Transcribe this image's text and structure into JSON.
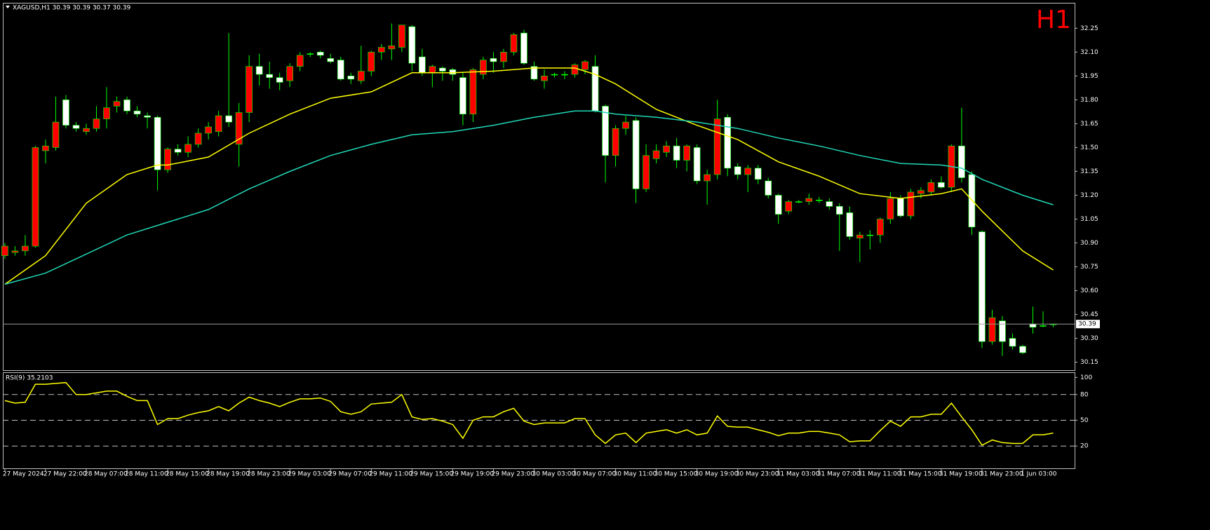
{
  "chart_data": [
    {
      "type": "candlestick",
      "title": "XAGUSD,H1  30.39 30.39 30.37 30.39",
      "annotation": "H1",
      "annotation_color": "#ff0000",
      "up_color": "#ff0000",
      "down_color": "#ffffff",
      "wick_color": "#00ff00",
      "categories": [
        "27 May 2024",
        null,
        null,
        null,
        "27 May 22:00",
        null,
        null,
        null,
        "28 May 07:00",
        null,
        null,
        null,
        "28 May 11:00",
        null,
        null,
        null,
        "28 May 15:00",
        null,
        null,
        null,
        "28 May 19:00",
        null,
        null,
        null,
        "28 May 23:00",
        null,
        null,
        null,
        "29 May 03:00",
        null,
        null,
        null,
        "29 May 07:00",
        null,
        null,
        null,
        "29 May 11:00",
        null,
        null,
        null,
        "29 May 15:00",
        null,
        null,
        null,
        "29 May 19:00",
        null,
        null,
        null,
        "29 May 23:00",
        null,
        null,
        null,
        "30 May 03:00",
        null,
        null,
        null,
        "30 May 07:00",
        null,
        null,
        null,
        "30 May 11:00",
        null,
        null,
        null,
        "30 May 15:00",
        null,
        null,
        null,
        "30 May 19:00",
        null,
        null,
        null,
        "30 May 23:00",
        null,
        null,
        null,
        "31 May 03:00",
        null,
        null,
        null,
        "31 May 07:00",
        null,
        null,
        null,
        "31 May 11:00",
        null,
        null,
        null,
        "31 May 15:00",
        null,
        null,
        null,
        "31 May 19:00",
        null,
        null,
        null,
        "31 May 23:00",
        null,
        null,
        null,
        "1 Jun 03:00",
        null,
        null,
        null
      ],
      "open": [
        30.82,
        30.84,
        30.85,
        30.88,
        31.48,
        31.5,
        31.8,
        31.64,
        31.6,
        31.62,
        31.68,
        31.76,
        31.8,
        31.73,
        31.7,
        31.69,
        31.36,
        31.49,
        31.47,
        31.52,
        31.59,
        31.6,
        31.7,
        31.52,
        31.72,
        32.01,
        31.96,
        31.94,
        31.92,
        32.01,
        32.09,
        32.1,
        32.06,
        32.05,
        31.95,
        31.92,
        31.98,
        32.1,
        32.12,
        32.13,
        32.26,
        32.07,
        31.97,
        32.0,
        31.99,
        31.94,
        31.71,
        31.96,
        32.06,
        32.04,
        32.1,
        32.22,
        32.01,
        31.92,
        31.96,
        31.96,
        31.96,
        31.99,
        32.01,
        31.76,
        31.45,
        31.62,
        31.67,
        31.24,
        31.43,
        31.47,
        31.51,
        31.42,
        31.5,
        31.29,
        31.33,
        31.69,
        31.38,
        31.33,
        31.37,
        31.29,
        31.2,
        31.1,
        31.16,
        31.16,
        31.17,
        31.16,
        31.13,
        31.09,
        30.93,
        30.95,
        30.95,
        31.05,
        31.18,
        31.07,
        31.21,
        31.22,
        31.28,
        31.25,
        31.51,
        31.33,
        30.97,
        30.28,
        30.41,
        30.3,
        30.25,
        30.39,
        30.38,
        30.39
      ],
      "high": [
        30.9,
        30.88,
        30.95,
        31.51,
        31.55,
        31.82,
        31.83,
        31.66,
        31.65,
        31.76,
        31.88,
        31.82,
        31.82,
        31.76,
        31.72,
        31.7,
        31.5,
        31.52,
        31.57,
        31.62,
        31.66,
        31.73,
        32.22,
        31.78,
        32.08,
        32.09,
        32.04,
        31.97,
        32.03,
        32.1,
        32.1,
        32.11,
        32.09,
        32.07,
        31.97,
        32.14,
        32.11,
        32.15,
        32.28,
        32.27,
        32.27,
        32.12,
        32.02,
        32.01,
        32.0,
        31.97,
        32.0,
        32.07,
        32.1,
        32.12,
        32.22,
        32.24,
        32.04,
        31.99,
        31.97,
        31.98,
        32.03,
        32.05,
        32.08,
        31.77,
        31.64,
        31.7,
        31.69,
        31.52,
        31.52,
        31.54,
        31.56,
        31.52,
        31.52,
        31.36,
        31.8,
        31.71,
        31.4,
        31.39,
        31.39,
        31.31,
        31.21,
        31.17,
        31.17,
        31.21,
        31.19,
        31.18,
        31.15,
        31.13,
        30.97,
        30.98,
        31.06,
        31.22,
        31.2,
        31.24,
        31.25,
        31.3,
        31.32,
        31.52,
        31.75,
        31.35,
        30.98,
        30.48,
        30.44,
        30.33,
        30.26,
        30.5,
        30.47,
        30.39
      ],
      "low": [
        30.8,
        30.82,
        30.82,
        30.87,
        31.4,
        31.48,
        31.62,
        31.6,
        31.58,
        31.6,
        31.62,
        31.72,
        31.71,
        31.69,
        31.62,
        31.23,
        31.34,
        31.45,
        31.44,
        31.5,
        31.55,
        31.57,
        31.63,
        31.38,
        31.66,
        31.89,
        31.87,
        31.86,
        31.88,
        31.98,
        32.07,
        32.06,
        32.03,
        31.92,
        31.9,
        31.9,
        31.95,
        32.05,
        32.05,
        32.1,
        31.98,
        31.95,
        31.88,
        31.92,
        31.92,
        31.64,
        31.66,
        31.93,
        31.97,
        32.0,
        32.08,
        32.02,
        31.92,
        31.87,
        31.94,
        31.93,
        31.94,
        31.96,
        31.72,
        31.28,
        31.38,
        31.58,
        31.15,
        31.22,
        31.4,
        31.44,
        31.37,
        31.35,
        31.27,
        31.14,
        31.3,
        31.32,
        31.3,
        31.22,
        31.27,
        31.18,
        31.02,
        31.08,
        31.15,
        31.14,
        31.15,
        31.11,
        30.85,
        30.92,
        30.78,
        30.86,
        30.9,
        31.02,
        31.06,
        31.05,
        31.18,
        31.2,
        31.24,
        31.22,
        31.28,
        30.95,
        30.24,
        30.26,
        30.19,
        30.23,
        30.2,
        30.33,
        30.37,
        30.37
      ],
      "close": [
        30.88,
        30.85,
        30.88,
        31.5,
        31.51,
        31.66,
        31.64,
        31.62,
        31.62,
        31.68,
        31.75,
        31.79,
        31.73,
        31.71,
        31.69,
        31.36,
        31.49,
        31.47,
        31.52,
        31.59,
        31.63,
        31.7,
        31.66,
        31.72,
        32.01,
        31.96,
        31.94,
        31.91,
        32.01,
        32.08,
        32.09,
        32.08,
        32.04,
        31.93,
        31.93,
        31.98,
        32.1,
        32.13,
        32.14,
        32.27,
        32.03,
        31.97,
        32.01,
        31.98,
        31.96,
        31.71,
        31.99,
        32.05,
        32.04,
        32.1,
        32.21,
        32.03,
        31.93,
        31.95,
        31.96,
        31.96,
        32.02,
        32.04,
        31.73,
        31.45,
        31.62,
        31.66,
        31.24,
        31.45,
        31.48,
        31.51,
        31.42,
        31.51,
        31.29,
        31.33,
        31.68,
        31.37,
        31.33,
        31.37,
        31.3,
        31.2,
        31.08,
        31.16,
        31.16,
        31.18,
        31.17,
        31.13,
        31.08,
        30.94,
        30.95,
        30.95,
        31.05,
        31.18,
        31.07,
        31.22,
        31.23,
        31.28,
        31.25,
        31.51,
        31.31,
        31.0,
        30.28,
        30.43,
        30.28,
        30.25,
        30.21,
        30.37,
        30.38,
        30.39
      ],
      "series": [
        {
          "color": "#ffff00",
          "x": [
            0,
            4,
            8,
            12,
            15,
            16,
            20,
            24,
            28,
            32,
            36,
            40,
            44,
            48,
            52,
            56,
            58,
            60,
            64,
            68,
            72,
            76,
            80,
            84,
            88,
            92,
            94,
            96,
            100,
            103
          ],
          "values": [
            30.64,
            30.82,
            31.15,
            31.33,
            31.39,
            31.39,
            31.44,
            31.59,
            31.71,
            31.81,
            31.85,
            31.97,
            31.97,
            31.98,
            32.0,
            32.0,
            31.96,
            31.9,
            31.74,
            31.64,
            31.55,
            31.41,
            31.32,
            31.21,
            31.18,
            31.21,
            31.24,
            31.1,
            30.85,
            30.73
          ]
        },
        {
          "color": "#20d8b8",
          "x": [
            0,
            4,
            8,
            12,
            16,
            20,
            24,
            28,
            32,
            36,
            40,
            44,
            48,
            52,
            56,
            58,
            60,
            64,
            68,
            72,
            76,
            80,
            84,
            88,
            92,
            94,
            96,
            100,
            103
          ],
          "values": [
            30.64,
            30.71,
            30.83,
            30.95,
            31.03,
            31.11,
            31.24,
            31.35,
            31.45,
            31.52,
            31.58,
            31.6,
            31.64,
            31.69,
            31.73,
            31.73,
            31.71,
            31.69,
            31.66,
            31.62,
            31.56,
            31.51,
            31.45,
            31.4,
            31.39,
            31.37,
            31.3,
            31.2,
            31.14
          ]
        }
      ],
      "last_price": 30.39,
      "xlim": [
        -0.2,
        105.1
      ],
      "ylim": [
        30.1,
        32.41
      ],
      "yticks": [
        32.25,
        {
          "value": 32.1,
          "label": "32.10"
        },
        31.95,
        {
          "value": 31.8,
          "label": "31.80"
        },
        31.65,
        {
          "value": 31.5,
          "label": "31.50"
        },
        31.35,
        {
          "value": 31.2,
          "label": "31.20"
        },
        31.05,
        {
          "value": 30.9,
          "label": "30.90"
        },
        30.75,
        {
          "value": 30.6,
          "label": "30.60"
        },
        30.45,
        {
          "value": 30.3,
          "label": "30.30"
        },
        30.15
      ]
    },
    {
      "type": "line",
      "title": "RSI(9) 35.2103",
      "series": [
        {
          "color": "#ffff00",
          "values": [
            73,
            70,
            71,
            92,
            92,
            93,
            94,
            80,
            80,
            82,
            84,
            84,
            78,
            73,
            73,
            45,
            52,
            52,
            56,
            59,
            61,
            66,
            61,
            70,
            77,
            73,
            70,
            66,
            71,
            75,
            75,
            76,
            72,
            60,
            57,
            60,
            69,
            70,
            71,
            80,
            54,
            51,
            52,
            49,
            45,
            29,
            50,
            54,
            54,
            60,
            64,
            49,
            45,
            47,
            47,
            47,
            52,
            52,
            33,
            23,
            33,
            35,
            24,
            35,
            37,
            39,
            35,
            39,
            33,
            35,
            55,
            43,
            42,
            42,
            39,
            36,
            32,
            35,
            35,
            37,
            37,
            35,
            33,
            25,
            26,
            26,
            38,
            49,
            43,
            54,
            54,
            57,
            57,
            70,
            54,
            39,
            21,
            27,
            24,
            23,
            23,
            33,
            33,
            35
          ]
        }
      ],
      "levels": [
        80,
        50,
        20
      ],
      "xlim": [
        -0.2,
        105.1
      ],
      "ylim": [
        -6,
        106
      ],
      "yticks": [
        100,
        80,
        50,
        20
      ]
    }
  ]
}
